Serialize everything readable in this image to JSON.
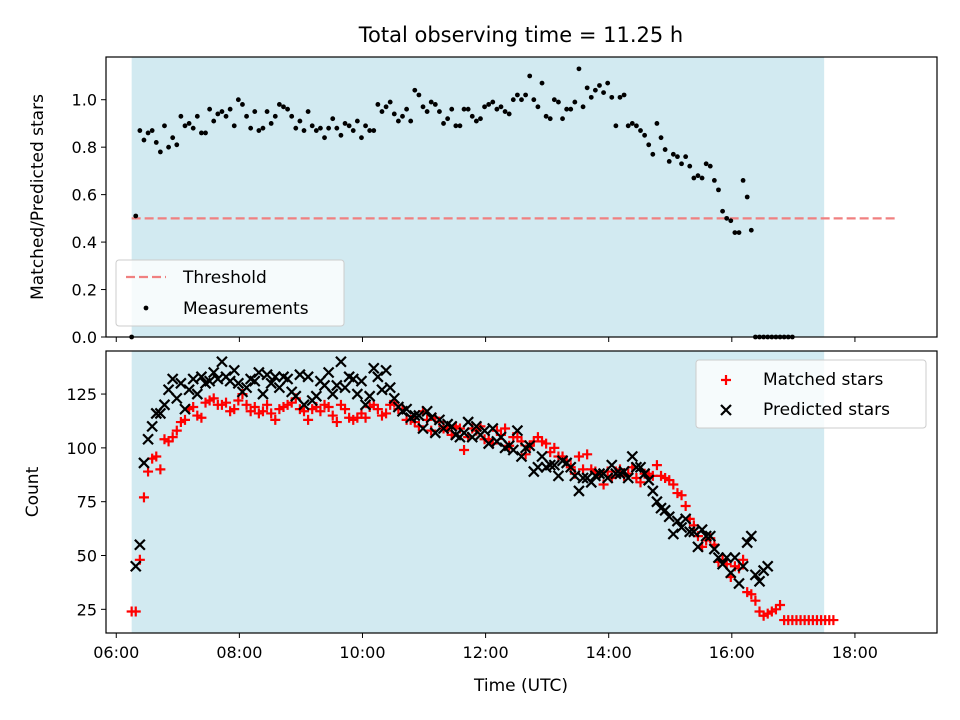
{
  "title": "Total observing time = 11.25 h",
  "colors": {
    "observing_window": "#add8e6",
    "threshold": "#f08080",
    "measurements": "#000000",
    "matched": "#ff0000",
    "predicted": "#000000"
  },
  "chart_data": [
    {
      "type": "scatter",
      "ylabel": "Matched/Predicted stars",
      "xlabel": "",
      "xlim": [
        "05:50",
        "19:20"
      ],
      "ylim": [
        0,
        1.18
      ],
      "yticks": [
        0.0,
        0.2,
        0.4,
        0.6,
        0.8,
        1.0
      ],
      "ytick_labels": [
        "0.0",
        "0.2",
        "0.4",
        "0.6",
        "0.8",
        "1.0"
      ],
      "observing_window": [
        "06:15",
        "17:30"
      ],
      "legend_position": "lower-left",
      "legend": {
        "threshold": "Threshold",
        "measurements": "Measurements"
      },
      "threshold": {
        "value": 0.5,
        "x_range": [
          "06:15",
          "18:40"
        ]
      },
      "x_start": "06:15",
      "x_end": "18:35",
      "x_step_minutes": 4,
      "measurements": [
        0.0,
        0.51,
        0.87,
        0.83,
        0.86,
        0.87,
        0.82,
        0.78,
        0.89,
        0.8,
        0.84,
        0.81,
        0.93,
        0.89,
        0.9,
        0.88,
        0.93,
        0.86,
        0.86,
        0.96,
        0.91,
        0.94,
        0.95,
        0.93,
        0.96,
        0.89,
        1.0,
        0.98,
        0.93,
        0.88,
        0.95,
        0.87,
        0.88,
        0.95,
        0.9,
        0.93,
        0.98,
        0.97,
        0.96,
        0.93,
        0.88,
        0.91,
        0.87,
        0.95,
        0.89,
        0.87,
        0.88,
        0.84,
        0.88,
        0.92,
        0.88,
        0.85,
        0.9,
        0.89,
        0.87,
        0.91,
        0.84,
        0.89,
        0.87,
        0.87,
        0.98,
        0.95,
        0.97,
        0.99,
        0.94,
        0.91,
        0.93,
        0.96,
        0.91,
        1.04,
        1.02,
        0.97,
        0.95,
        0.99,
        0.98,
        0.95,
        0.9,
        0.92,
        0.96,
        0.89,
        0.89,
        0.96,
        0.96,
        0.93,
        0.91,
        0.92,
        0.97,
        0.98,
        0.99,
        0.96,
        0.97,
        0.95,
        0.94,
        1.0,
        1.02,
        1.0,
        1.02,
        1.1,
        1.0,
        0.97,
        1.07,
        0.93,
        0.92,
        1.0,
        0.99,
        0.92,
        0.96,
        0.96,
        0.99,
        1.13,
        0.97,
        1.05,
        1.01,
        1.04,
        1.06,
        1.03,
        1.07,
        1.01,
        0.89,
        1.01,
        1.02,
        0.89,
        0.9,
        0.89,
        0.87,
        0.85,
        0.81,
        0.77,
        0.9,
        0.84,
        0.79,
        0.74,
        0.77,
        0.76,
        0.73,
        0.76,
        0.72,
        0.67,
        0.68,
        0.67,
        0.73,
        0.72,
        0.66,
        0.62,
        0.53,
        0.5,
        0.49,
        0.44,
        0.44,
        0.66,
        0.59,
        0.45,
        0.0,
        0.0,
        0.0,
        0.0,
        0.0,
        0.0,
        0.0,
        0.0,
        0.0,
        0.0
      ]
    },
    {
      "type": "scatter",
      "ylabel": "Count",
      "xlabel": "Time (UTC)",
      "xlim": [
        "05:50",
        "19:20"
      ],
      "ylim": [
        14,
        145
      ],
      "yticks": [
        25,
        50,
        75,
        100,
        125
      ],
      "ytick_labels": [
        "25",
        "50",
        "75",
        "100",
        "125"
      ],
      "xticks": [
        "06:00",
        "08:00",
        "10:00",
        "12:00",
        "14:00",
        "16:00",
        "18:00"
      ],
      "observing_window": [
        "06:15",
        "17:30"
      ],
      "legend_position": "upper-right",
      "x_start": "06:15",
      "x_step_minutes": 4,
      "series": [
        {
          "name": "Matched stars",
          "marker": "+",
          "values": [
            24,
            24,
            48,
            77,
            89,
            95,
            96,
            90,
            104,
            103,
            105,
            108,
            112,
            113,
            118,
            119,
            115,
            114,
            121,
            122,
            123,
            120,
            120,
            121,
            117,
            118,
            122,
            125,
            120,
            117,
            119,
            116,
            117,
            120,
            116,
            113,
            118,
            119,
            120,
            121,
            123,
            118,
            117,
            113,
            118,
            119,
            117,
            120,
            119,
            115,
            112,
            120,
            118,
            114,
            113,
            114,
            116,
            114,
            119,
            120,
            118,
            115,
            116,
            120,
            121,
            118,
            118,
            113,
            113,
            112,
            110,
            117,
            113,
            108,
            114,
            112,
            109,
            108,
            106,
            110,
            109,
            99,
            105,
            109,
            108,
            110,
            104,
            104,
            102,
            108,
            106,
            109,
            101,
            105,
            105,
            103,
            97,
            101,
            103,
            105,
            103,
            102,
            98,
            100,
            96,
            96,
            94,
            91,
            88,
            96,
            90,
            97,
            90,
            89,
            88,
            83,
            89,
            86,
            89,
            90,
            87,
            88,
            91,
            86,
            84,
            88,
            88,
            87,
            92,
            87,
            86,
            85,
            83,
            79,
            78,
            73,
            67,
            64,
            59,
            54,
            57,
            58,
            55,
            47,
            48,
            46,
            40,
            45,
            44,
            48,
            33,
            32,
            29,
            24,
            22,
            23,
            24,
            25,
            27,
            20,
            20,
            20,
            20,
            20,
            20,
            20,
            20,
            20,
            20,
            20,
            20,
            20
          ]
        },
        {
          "name": "Predicted stars",
          "marker": "x",
          "values": [
            null,
            45,
            55,
            93,
            104,
            110,
            116,
            116,
            120,
            127,
            132,
            123,
            130,
            118,
            127,
            132,
            125,
            133,
            130,
            131,
            135,
            132,
            140,
            133,
            131,
            136,
            130,
            126,
            128,
            132,
            131,
            135,
            125,
            134,
            130,
            133,
            128,
            133,
            132,
            126,
            124,
            134,
            120,
            133,
            122,
            124,
            131,
            129,
            135,
            125,
            129,
            140,
            128,
            133,
            132,
            125,
            131,
            120,
            124,
            137,
            133,
            127,
            136,
            128,
            123,
            119,
            117,
            118,
            114,
            115,
            115,
            109,
            117,
            114,
            107,
            113,
            109,
            111,
            110,
            106,
            105,
            107,
            112,
            105,
            110,
            106,
            108,
            102,
            109,
            103,
            105,
            100,
            101,
            99,
            108,
            96,
            100,
            101,
            89,
            91,
            96,
            91,
            92,
            92,
            87,
            94,
            93,
            91,
            87,
            80,
            86,
            86,
            84,
            87,
            88,
            88,
            86,
            92,
            88,
            88,
            89,
            86,
            96,
            91,
            91,
            88,
            85,
            80,
            75,
            72,
            71,
            68,
            60,
            66,
            63,
            67,
            61,
            61,
            54,
            62,
            59,
            59,
            53,
            49,
            46,
            49,
            42,
            49,
            37,
            45,
            56,
            59,
            41,
            38,
            43,
            45
          ]
        }
      ]
    }
  ],
  "axes_labels": {
    "top_ylabel": "Matched/Predicted stars",
    "bottom_ylabel": "Count",
    "xlabel": "Time (UTC)"
  }
}
